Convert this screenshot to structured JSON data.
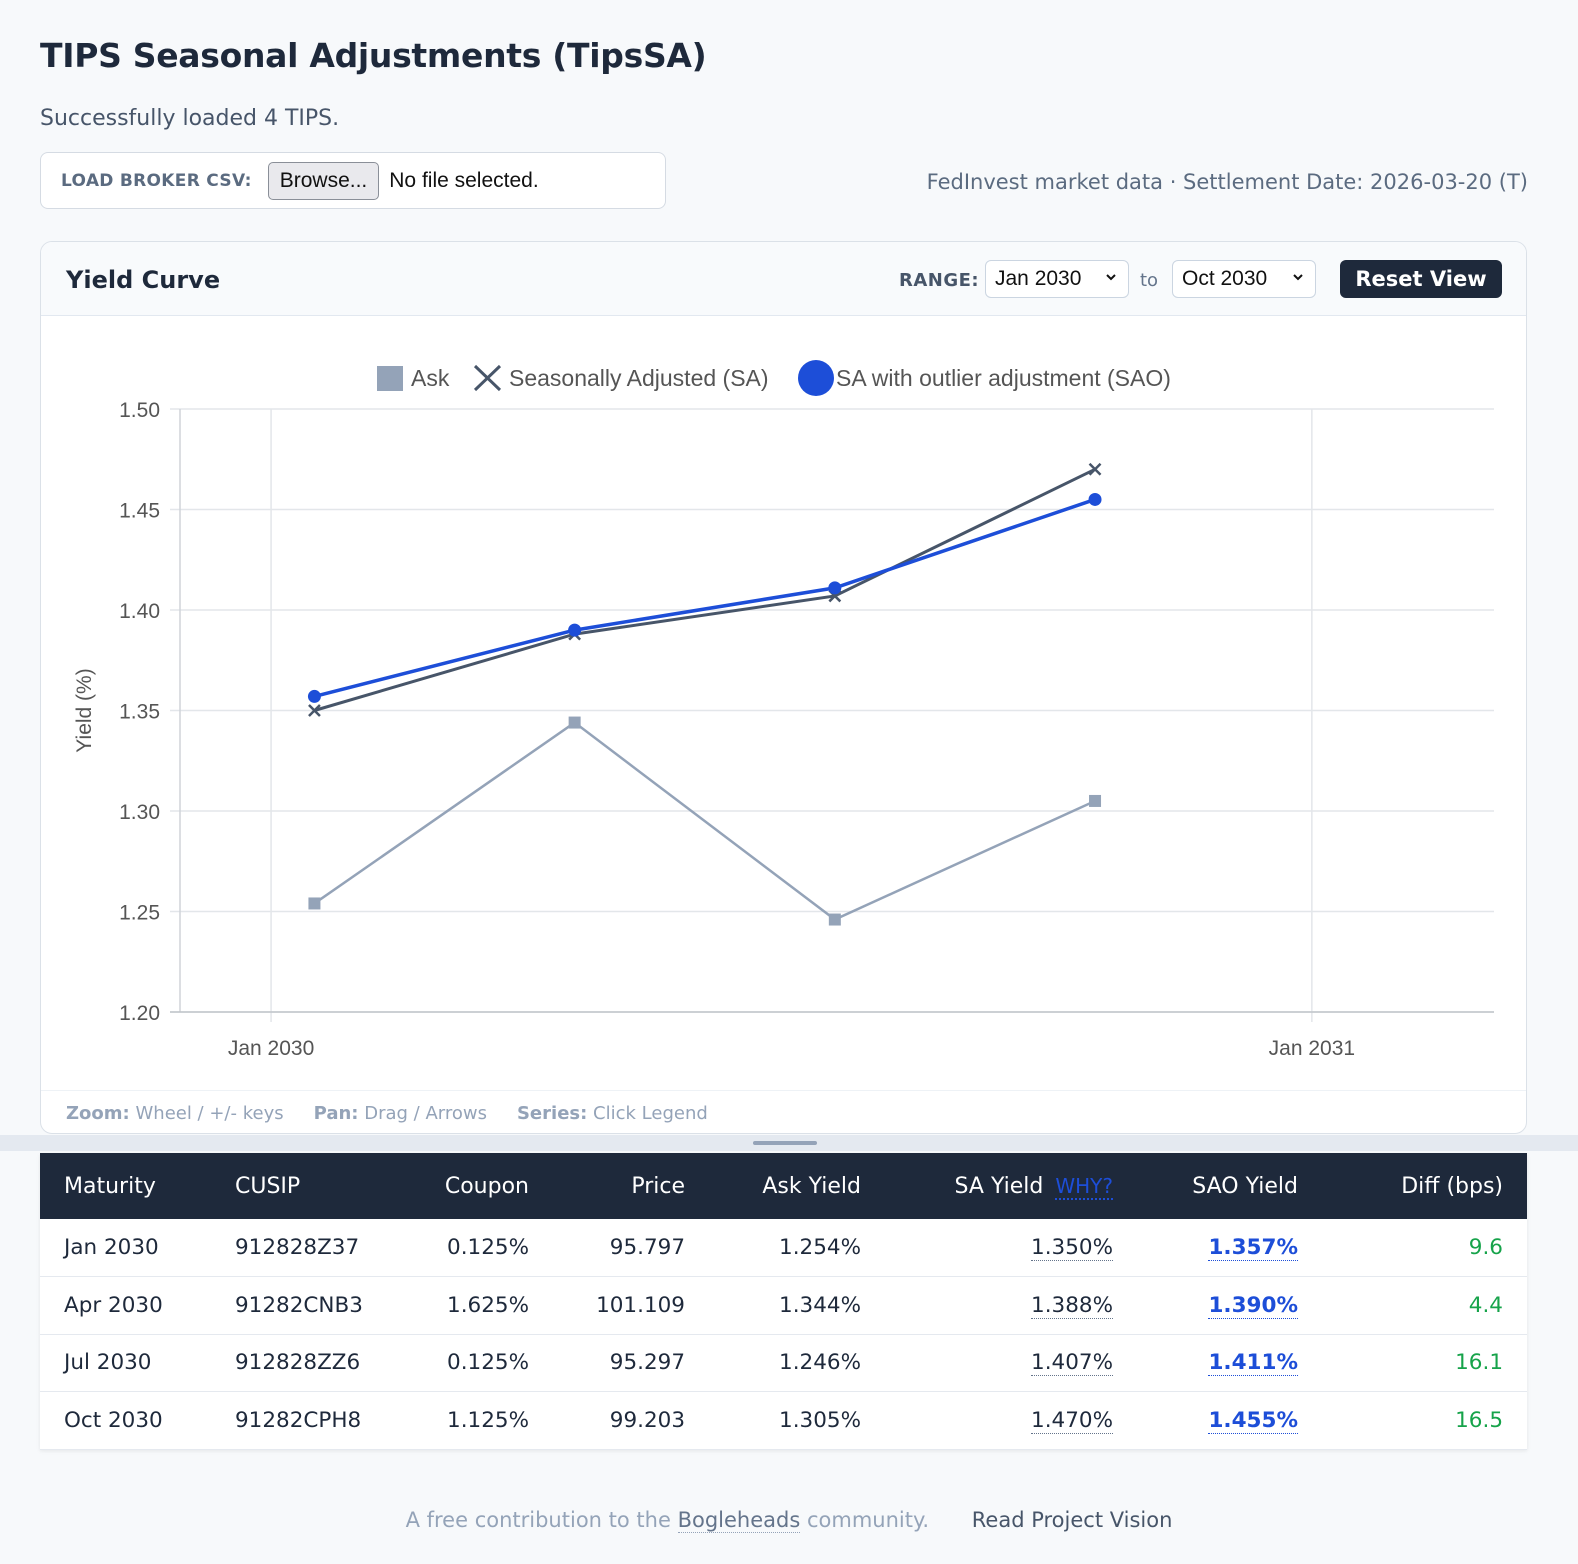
{
  "page": {
    "title": "TIPS Seasonal Adjustments (TipsSA)",
    "status": "Successfully loaded 4 TIPS."
  },
  "csv": {
    "label": "LOAD BROKER CSV:",
    "browse_label": "Browse...",
    "file_status": "No file selected."
  },
  "market_info": "FedInvest market data · Settlement Date: 2026-03-20 (T)",
  "chart_card": {
    "title": "Yield Curve",
    "range_label": "RANGE:",
    "range_from": "Jan 2030",
    "range_to_word": "to",
    "range_to": "Oct 2030",
    "reset_label": "Reset View",
    "footer": [
      {
        "key": "Zoom:",
        "text": "Wheel / +/- keys"
      },
      {
        "key": "Pan:",
        "text": "Drag / Arrows"
      },
      {
        "key": "Series:",
        "text": "Click Legend"
      }
    ]
  },
  "chart_data": {
    "type": "line",
    "title": "",
    "xlabel": "",
    "ylabel": "Yield (%)",
    "ylim": [
      1.2,
      1.5
    ],
    "y_ticks": [
      "1.50",
      "1.45",
      "1.40",
      "1.35",
      "1.30",
      "1.25",
      "1.20"
    ],
    "x_ticks": [
      "Jan 2030",
      "Jan 2031"
    ],
    "x": [
      "Jan 2030",
      "Apr 2030",
      "Jul 2030",
      "Oct 2030"
    ],
    "x_month_offsets": [
      0.5,
      3.5,
      6.5,
      9.5
    ],
    "x_range_months": [
      -1.05,
      14.1
    ],
    "legend_position": "top",
    "series": [
      {
        "name": "Ask",
        "marker": "square",
        "color": "#94a3b8",
        "values": [
          1.254,
          1.344,
          1.246,
          1.305
        ]
      },
      {
        "name": "Seasonally Adjusted (SA)",
        "marker": "cross",
        "color": "#475569",
        "values": [
          1.35,
          1.388,
          1.407,
          1.47
        ]
      },
      {
        "name": "SA with outlier adjustment (SAO)",
        "marker": "circle",
        "color": "#1d4ed8",
        "values": [
          1.357,
          1.39,
          1.411,
          1.455
        ]
      }
    ]
  },
  "table": {
    "headers": {
      "maturity": "Maturity",
      "cusip": "CUSIP",
      "coupon": "Coupon",
      "price": "Price",
      "ask_yield": "Ask Yield",
      "sa_yield": "SA Yield",
      "why": "WHY?",
      "sao_yield": "SAO Yield",
      "diff": "Diff (bps)"
    },
    "rows": [
      {
        "maturity": "Jan 2030",
        "cusip": "912828Z37",
        "coupon": "0.125%",
        "price": "95.797",
        "ask_yield": "1.254%",
        "sa_yield": "1.350%",
        "sao_yield": "1.357%",
        "diff": "9.6"
      },
      {
        "maturity": "Apr 2030",
        "cusip": "91282CNB3",
        "coupon": "1.625%",
        "price": "101.109",
        "ask_yield": "1.344%",
        "sa_yield": "1.388%",
        "sao_yield": "1.390%",
        "diff": "4.4"
      },
      {
        "maturity": "Jul 2030",
        "cusip": "912828ZZ6",
        "coupon": "0.125%",
        "price": "95.297",
        "ask_yield": "1.246%",
        "sa_yield": "1.407%",
        "sao_yield": "1.411%",
        "diff": "16.1"
      },
      {
        "maturity": "Oct 2030",
        "cusip": "91282CPH8",
        "coupon": "1.125%",
        "price": "99.203",
        "ask_yield": "1.305%",
        "sa_yield": "1.470%",
        "sao_yield": "1.455%",
        "diff": "16.5"
      }
    ]
  },
  "footer": {
    "text_before": "A free contribution to the",
    "bogleheads": "Bogleheads",
    "text_after": "community.",
    "vision_link": "Read Project Vision"
  },
  "colors": {
    "accent": "#1d4ed8",
    "dark": "#1e293b",
    "positive": "#16a34a"
  },
  "icons": {
    "select_arrow": "chevron-down-icon"
  }
}
